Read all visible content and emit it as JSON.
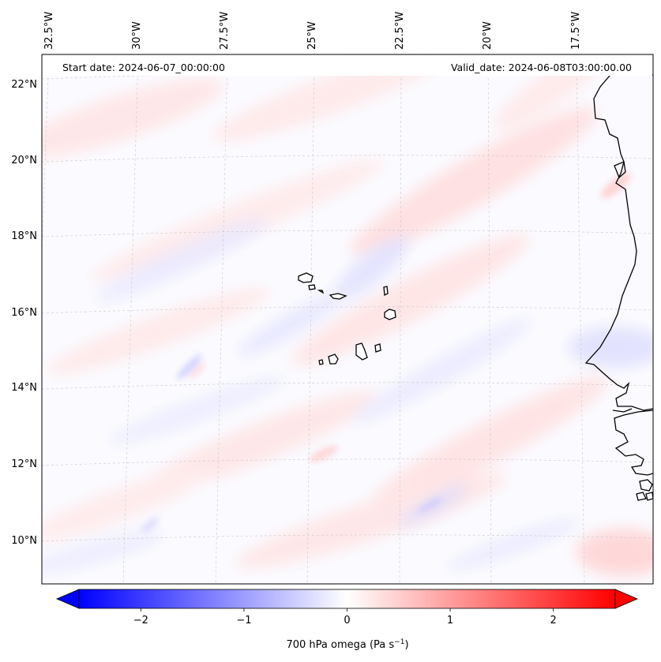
{
  "header": {
    "start_date": "Start date: 2024-06-07_00:00:00",
    "valid_date": "Valid_date: 2024-06-08T03:00:00.00"
  },
  "map": {
    "projection": "lambert-conformal",
    "extent": {
      "lon_min": -32.7,
      "lon_max": -15.8,
      "lat_min": 8.9,
      "lat_max": 22.5
    },
    "gridlines": true,
    "lon_labels": [
      "32.5°W",
      "30°W",
      "27.5°W",
      "25°W",
      "22.5°W",
      "20°W",
      "17.5°W"
    ],
    "lat_labels": [
      "22°N",
      "20°N",
      "18°N",
      "16°N",
      "14°N",
      "12°N",
      "10°N"
    ],
    "coastline_color": "#000000"
  },
  "field": {
    "variable": "700 hPa omega",
    "cmap": "bwr",
    "vmin": -2.6,
    "vmax": 2.6
  },
  "colorbar": {
    "label_main": "700 hPa omega (Pa s",
    "label_sup": "−1",
    "label_end": ")",
    "ticks": [
      "−2",
      "−1",
      "0",
      "1",
      "2"
    ],
    "tick_values": [
      -2,
      -1,
      0,
      1,
      2
    ],
    "extend": "both",
    "low_color": "#0000ff",
    "mid_color": "#ffffff",
    "high_color": "#ff0000"
  }
}
